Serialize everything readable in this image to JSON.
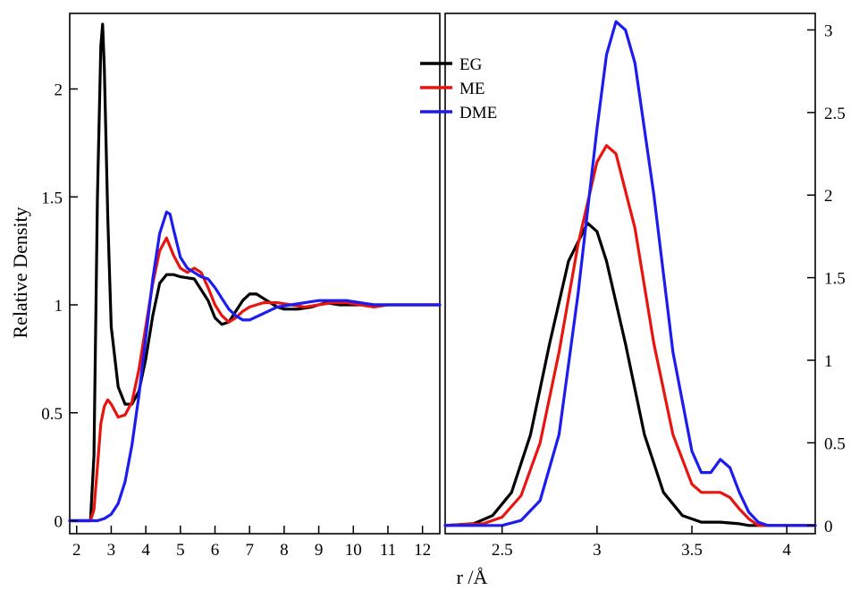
{
  "chart_data": [
    {
      "type": "line",
      "panel": "left",
      "title": "",
      "ylabel": "Relative Density",
      "xlabel": "r /Å",
      "xlim": [
        1.8,
        12.5
      ],
      "ylim": [
        -0.06,
        2.35
      ],
      "xticks": [
        2,
        3,
        4,
        5,
        6,
        7,
        8,
        9,
        10,
        11,
        12
      ],
      "yticks": [
        0,
        0.5,
        1,
        1.5,
        2
      ],
      "ytick_labels": [
        "0",
        "0.5",
        "1",
        "1.5",
        "2"
      ],
      "grid": false,
      "legend": {
        "position": "top-center",
        "entries": [
          "EG",
          "ME",
          "DME"
        ]
      },
      "series": [
        {
          "name": "EG",
          "color": "#000000",
          "x": [
            1.8,
            2.4,
            2.5,
            2.6,
            2.7,
            2.75,
            2.8,
            2.9,
            3.0,
            3.2,
            3.4,
            3.6,
            3.8,
            4.0,
            4.2,
            4.4,
            4.6,
            4.8,
            5.0,
            5.4,
            5.8,
            6.0,
            6.2,
            6.4,
            6.6,
            6.8,
            7.0,
            7.2,
            7.4,
            7.6,
            7.8,
            8.0,
            8.4,
            8.8,
            9.2,
            9.6,
            10.0,
            10.5,
            11.0,
            11.5,
            12.0,
            12.5
          ],
          "y": [
            0,
            0,
            0.3,
            1.5,
            2.2,
            2.3,
            2.1,
            1.4,
            0.9,
            0.62,
            0.54,
            0.54,
            0.6,
            0.75,
            0.95,
            1.1,
            1.14,
            1.14,
            1.13,
            1.12,
            1.02,
            0.94,
            0.91,
            0.92,
            0.97,
            1.02,
            1.05,
            1.05,
            1.03,
            1.01,
            0.99,
            0.98,
            0.98,
            0.99,
            1.01,
            1.0,
            1.0,
            1.0,
            1.0,
            1.0,
            1.0,
            1.0
          ]
        },
        {
          "name": "ME",
          "color": "#e8140f",
          "x": [
            1.8,
            2.4,
            2.5,
            2.6,
            2.7,
            2.8,
            2.9,
            3.0,
            3.2,
            3.4,
            3.6,
            3.8,
            4.0,
            4.2,
            4.4,
            4.6,
            4.8,
            5.0,
            5.2,
            5.4,
            5.6,
            5.8,
            6.0,
            6.2,
            6.4,
            6.6,
            6.8,
            7.0,
            7.4,
            7.8,
            8.2,
            8.6,
            9.0,
            9.4,
            9.8,
            10.2,
            10.6,
            11.0,
            11.5,
            12.0,
            12.5
          ],
          "y": [
            0,
            0,
            0.05,
            0.25,
            0.45,
            0.53,
            0.56,
            0.54,
            0.48,
            0.49,
            0.55,
            0.7,
            0.9,
            1.1,
            1.25,
            1.31,
            1.23,
            1.17,
            1.15,
            1.17,
            1.15,
            1.08,
            1.0,
            0.95,
            0.92,
            0.94,
            0.97,
            0.99,
            1.01,
            1.01,
            1.0,
            0.99,
            1.0,
            1.01,
            1.01,
            1.0,
            0.99,
            1.0,
            1.0,
            1.0,
            1.0
          ]
        },
        {
          "name": "DME",
          "color": "#1c1cf0",
          "x": [
            1.8,
            2.6,
            2.8,
            3.0,
            3.2,
            3.4,
            3.6,
            3.8,
            4.0,
            4.2,
            4.4,
            4.6,
            4.7,
            4.8,
            5.0,
            5.2,
            5.4,
            5.6,
            5.8,
            6.0,
            6.2,
            6.4,
            6.6,
            6.8,
            7.0,
            7.4,
            7.8,
            8.2,
            8.6,
            9.0,
            9.4,
            9.8,
            10.2,
            10.6,
            11.0,
            11.5,
            12.0,
            12.5
          ],
          "y": [
            0,
            0,
            0.01,
            0.03,
            0.08,
            0.18,
            0.35,
            0.58,
            0.85,
            1.12,
            1.33,
            1.43,
            1.42,
            1.35,
            1.22,
            1.17,
            1.15,
            1.13,
            1.12,
            1.08,
            1.03,
            0.98,
            0.95,
            0.93,
            0.93,
            0.96,
            0.99,
            1.0,
            1.01,
            1.02,
            1.02,
            1.02,
            1.01,
            1.0,
            1.0,
            1.0,
            1.0,
            1.0
          ]
        }
      ]
    },
    {
      "type": "line",
      "panel": "right",
      "title": "",
      "xlabel": "r /Å",
      "ylabel": "",
      "xlim": [
        2.2,
        4.15
      ],
      "ylim": [
        -0.05,
        3.1
      ],
      "xticks": [
        2.5,
        3,
        3.5,
        4
      ],
      "xtick_labels": [
        "2.5",
        "3",
        "3.5",
        "4"
      ],
      "yticks": [
        0,
        0.5,
        1,
        1.5,
        2,
        2.5,
        3
      ],
      "ytick_labels": [
        "0",
        "0.5",
        "1",
        "1.5",
        "2",
        "2.5",
        "3"
      ],
      "y_axis_side": "right",
      "grid": false,
      "series": [
        {
          "name": "EG",
          "color": "#000000",
          "x": [
            2.2,
            2.35,
            2.45,
            2.55,
            2.65,
            2.75,
            2.85,
            2.95,
            3.0,
            3.05,
            3.15,
            3.25,
            3.35,
            3.45,
            3.55,
            3.65,
            3.75,
            3.8,
            3.9,
            4.15
          ],
          "y": [
            0,
            0.01,
            0.06,
            0.2,
            0.55,
            1.1,
            1.6,
            1.83,
            1.78,
            1.6,
            1.1,
            0.55,
            0.2,
            0.06,
            0.02,
            0.02,
            0.01,
            0,
            0,
            0
          ]
        },
        {
          "name": "ME",
          "color": "#e8140f",
          "x": [
            2.2,
            2.4,
            2.5,
            2.6,
            2.7,
            2.8,
            2.9,
            3.0,
            3.05,
            3.1,
            3.2,
            3.3,
            3.4,
            3.5,
            3.55,
            3.6,
            3.65,
            3.7,
            3.75,
            3.8,
            3.85,
            4.15
          ],
          "y": [
            0,
            0.01,
            0.05,
            0.18,
            0.5,
            1.05,
            1.7,
            2.2,
            2.3,
            2.25,
            1.8,
            1.1,
            0.55,
            0.25,
            0.2,
            0.2,
            0.2,
            0.17,
            0.1,
            0.04,
            0,
            0
          ]
        },
        {
          "name": "DME",
          "color": "#1c1cf0",
          "x": [
            2.2,
            2.5,
            2.6,
            2.7,
            2.8,
            2.9,
            3.0,
            3.05,
            3.1,
            3.15,
            3.2,
            3.3,
            3.4,
            3.5,
            3.55,
            3.6,
            3.65,
            3.7,
            3.75,
            3.8,
            3.85,
            3.9,
            4.15
          ],
          "y": [
            0,
            0,
            0.03,
            0.15,
            0.55,
            1.4,
            2.4,
            2.85,
            3.05,
            3.0,
            2.8,
            2.0,
            1.05,
            0.45,
            0.32,
            0.32,
            0.4,
            0.35,
            0.2,
            0.08,
            0.02,
            0,
            0
          ]
        }
      ]
    }
  ]
}
